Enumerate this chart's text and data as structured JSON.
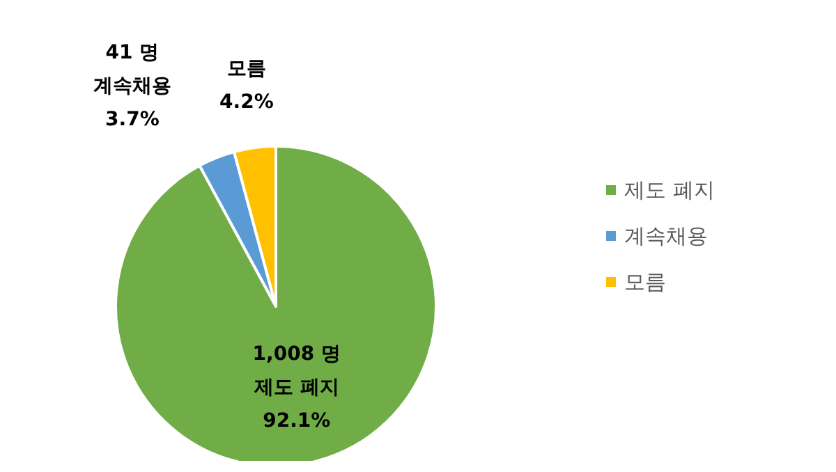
{
  "chart_data": {
    "type": "pie",
    "categories": [
      "제도 폐지",
      "계속채용",
      "모름"
    ],
    "values": [
      92.1,
      3.7,
      4.2
    ],
    "colors": [
      "#70ad47",
      "#5b9bd5",
      "#ffc000"
    ],
    "value_labels": [
      "1,008 명\n제도 폐지\n92.1%",
      "41 명\n계속채용\n3.7%",
      "모름\n4.2%"
    ],
    "legend": "right"
  }
}
